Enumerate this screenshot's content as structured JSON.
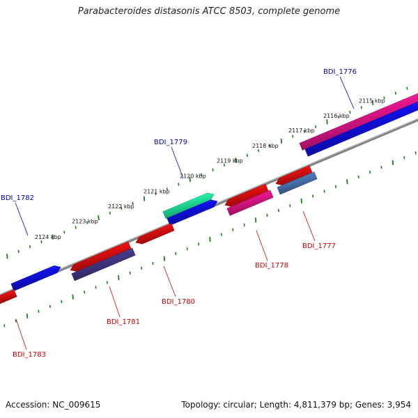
{
  "title": "Parabacteroides distasonis ATCC 8503, complete genome",
  "footer": {
    "accession": "Accession: NC_009615",
    "summary": "Topology: circular; Length: 4,811,379 bp; Genes: 3,954"
  },
  "colors": {
    "backbone": "#808080",
    "ticks": "#1f7a1f",
    "label_forward": "#0000aa",
    "label_reverse": "#cc0000"
  },
  "tick_labels": [
    "2115 kbp",
    "2116 kbp",
    "2117 kbp",
    "2118 kbp",
    "2119 kbp",
    "2120 kbp",
    "2121 kbp",
    "2122 kbp",
    "2123 kbp",
    "2124 kbp"
  ],
  "genes": [
    {
      "name": "BDI_1776",
      "strand": "forward",
      "labeled": true,
      "color": "#e8168e"
    },
    {
      "name": "",
      "strand": "forward",
      "labeled": false,
      "color": "#1010e8"
    },
    {
      "name": "BDI_1779",
      "strand": "forward",
      "labeled": true,
      "color": "#22e8a0"
    },
    {
      "name": "",
      "strand": "forward",
      "labeled": false,
      "color": "#1010e8"
    },
    {
      "name": "BDI_1782",
      "strand": "forward",
      "labeled": true,
      "color": "#1010e8"
    },
    {
      "name": "BDI_1777",
      "strand": "reverse",
      "labeled": true,
      "color": "#e81010"
    },
    {
      "name": "",
      "strand": "reverse",
      "labeled": false,
      "color": "#4a7ab8"
    },
    {
      "name": "BDI_1778",
      "strand": "reverse",
      "labeled": true,
      "color": "#e81010"
    },
    {
      "name": "",
      "strand": "reverse",
      "labeled": false,
      "color": "#e8168e"
    },
    {
      "name": "BDI_1780",
      "strand": "reverse",
      "labeled": true,
      "color": "#e81010"
    },
    {
      "name": "BDI_1781",
      "strand": "reverse",
      "labeled": true,
      "color": "#e81010"
    },
    {
      "name": "",
      "strand": "reverse",
      "labeled": false,
      "color": "#463a8a"
    },
    {
      "name": "BDI_1783",
      "strand": "reverse",
      "labeled": true,
      "color": "#e81010"
    }
  ]
}
